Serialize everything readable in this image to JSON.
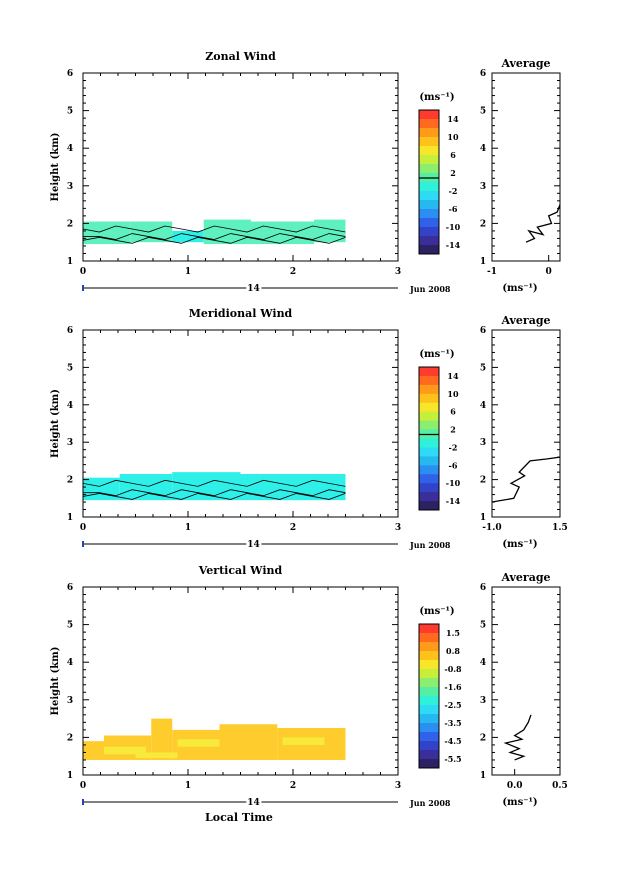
{
  "footer": {
    "xlabel": "Local Time"
  },
  "chart_data": [
    {
      "type": "heatmap",
      "title": "Zonal Wind",
      "ylabel": "Height (km)",
      "xlim": [
        0,
        3
      ],
      "ylim": [
        1,
        6
      ],
      "xticks": [
        "0",
        "1",
        "2",
        "3"
      ],
      "yticks": [
        "1",
        "2",
        "3",
        "4",
        "5",
        "6"
      ],
      "day_axis": {
        "label": "14",
        "month": "Jun 2008"
      },
      "colorbar": {
        "unit": "(ms⁻¹)",
        "labels": [
          "14",
          "10",
          "6",
          "2",
          "-2",
          "-6",
          "-10",
          "-14"
        ],
        "colors": [
          "#ff3b30",
          "#ff6a1f",
          "#ff9a1a",
          "#ffc21a",
          "#f7e62a",
          "#c6ef3c",
          "#8bee6e",
          "#55eea5",
          "#2ff0d8",
          "#2ddcf4",
          "#27b8f0",
          "#2a8ff0",
          "#2f62e8",
          "#3343c8",
          "#3a2f9a",
          "#2c2262"
        ],
        "zero_line_at": 8
      },
      "cells": [
        {
          "x0": 0.0,
          "x1": 0.45,
          "y0": 1.45,
          "y1": 2.05,
          "v": 0
        },
        {
          "x0": 0.45,
          "x1": 0.85,
          "y0": 1.5,
          "y1": 2.05,
          "v": 0
        },
        {
          "x0": 0.85,
          "x1": 1.15,
          "y0": 1.5,
          "y1": 1.8,
          "v": -2
        },
        {
          "x0": 1.15,
          "x1": 1.6,
          "y0": 1.45,
          "y1": 2.1,
          "v": 0
        },
        {
          "x0": 1.6,
          "x1": 2.2,
          "y0": 1.45,
          "y1": 2.05,
          "v": 1
        },
        {
          "x0": 2.2,
          "x1": 2.5,
          "y0": 1.5,
          "y1": 2.1,
          "v": 0
        }
      ],
      "profile": {
        "title": "Average",
        "xlabel": "(ms⁻¹)",
        "xlim": [
          -1,
          0.2
        ],
        "xticks": [
          "-1",
          "0"
        ],
        "x": [
          -0.4,
          -0.25,
          -0.35,
          -0.1,
          -0.2,
          0.05,
          0.0,
          0.15,
          0.2
        ],
        "y": [
          1.5,
          1.6,
          1.8,
          1.7,
          1.9,
          2.0,
          2.2,
          2.3,
          2.5
        ]
      }
    },
    {
      "type": "heatmap",
      "title": "Meridional Wind",
      "ylabel": "Height (km)",
      "xlim": [
        0,
        3
      ],
      "ylim": [
        1,
        6
      ],
      "xticks": [
        "0",
        "1",
        "2",
        "3"
      ],
      "yticks": [
        "1",
        "2",
        "3",
        "4",
        "5",
        "6"
      ],
      "day_axis": {
        "label": "14",
        "month": "Jun 2008"
      },
      "colorbar": {
        "unit": "(ms⁻¹)",
        "labels": [
          "14",
          "10",
          "6",
          "2",
          "-2",
          "-6",
          "-10",
          "-14"
        ],
        "colors": [
          "#ff3b30",
          "#ff6a1f",
          "#ff9a1a",
          "#ffc21a",
          "#f7e62a",
          "#c6ef3c",
          "#8bee6e",
          "#55eea5",
          "#2ff0d8",
          "#2ddcf4",
          "#27b8f0",
          "#2a8ff0",
          "#2f62e8",
          "#3343c8",
          "#3a2f9a",
          "#2c2262"
        ],
        "zero_line_at": 8
      },
      "cells": [
        {
          "x0": 0.0,
          "x1": 0.35,
          "y0": 1.45,
          "y1": 2.05,
          "v": -1
        },
        {
          "x0": 0.35,
          "x1": 0.85,
          "y0": 1.45,
          "y1": 2.15,
          "v": -1
        },
        {
          "x0": 0.85,
          "x1": 1.5,
          "y0": 1.45,
          "y1": 2.2,
          "v": -1
        },
        {
          "x0": 1.5,
          "x1": 2.5,
          "y0": 1.45,
          "y1": 2.15,
          "v": -1
        }
      ],
      "profile": {
        "title": "Average",
        "xlabel": "(ms⁻¹)",
        "xlim": [
          -1.0,
          1.5
        ],
        "xticks": [
          "-1.0",
          "1.5"
        ],
        "x": [
          -1.0,
          -0.2,
          0.0,
          -0.3,
          0.2,
          0.0,
          0.4,
          1.0,
          1.5
        ],
        "y": [
          1.4,
          1.5,
          1.8,
          1.9,
          2.1,
          2.2,
          2.5,
          2.55,
          2.6
        ]
      }
    },
    {
      "type": "heatmap",
      "title": "Vertical Wind",
      "ylabel": "Height (km)",
      "xlabel": "Local Time",
      "xlim": [
        0,
        3
      ],
      "ylim": [
        1,
        6
      ],
      "xticks": [
        "0",
        "1",
        "2",
        "3"
      ],
      "yticks": [
        "1",
        "2",
        "3",
        "4",
        "5",
        "6"
      ],
      "day_axis": {
        "label": "14",
        "month": "Jun 2008"
      },
      "colorbar": {
        "unit": "(ms⁻¹)",
        "labels": [
          "1.5",
          "0.8",
          "-0.8",
          "-1.6",
          "-2.5",
          "-3.5",
          "-4.5",
          "-5.5"
        ],
        "colors": [
          "#ff3b30",
          "#ff6a1f",
          "#ff9a1a",
          "#ffc21a",
          "#f7e62a",
          "#c6ef3c",
          "#8bee6e",
          "#55eea5",
          "#2ff0d8",
          "#2ddcf4",
          "#27b8f0",
          "#2a8ff0",
          "#2f62e8",
          "#3343c8",
          "#3a2f9a",
          "#2c2262"
        ]
      },
      "cells": [
        {
          "x0": 0.0,
          "x1": 0.2,
          "y0": 1.4,
          "y1": 1.9,
          "v": 1
        },
        {
          "x0": 0.2,
          "x1": 0.65,
          "y0": 1.4,
          "y1": 2.05,
          "v": 1
        },
        {
          "x0": 0.65,
          "x1": 0.85,
          "y0": 1.4,
          "y1": 2.5,
          "v": 1
        },
        {
          "x0": 0.85,
          "x1": 1.3,
          "y0": 1.4,
          "y1": 2.2,
          "v": 1
        },
        {
          "x0": 1.3,
          "x1": 1.85,
          "y0": 1.4,
          "y1": 2.35,
          "v": 1
        },
        {
          "x0": 1.85,
          "x1": 2.5,
          "y0": 1.4,
          "y1": 2.25,
          "v": 1
        }
      ],
      "profile": {
        "title": "Average",
        "xlabel": "(ms⁻¹)",
        "xlim": [
          -0.25,
          0.5
        ],
        "xticks": [
          "0.0",
          "0.5"
        ],
        "x": [
          0.0,
          0.1,
          -0.05,
          0.05,
          -0.1,
          0.08,
          0.0,
          0.1,
          0.15,
          0.18
        ],
        "y": [
          1.4,
          1.5,
          1.6,
          1.7,
          1.85,
          1.95,
          2.05,
          2.2,
          2.4,
          2.6
        ]
      }
    }
  ]
}
